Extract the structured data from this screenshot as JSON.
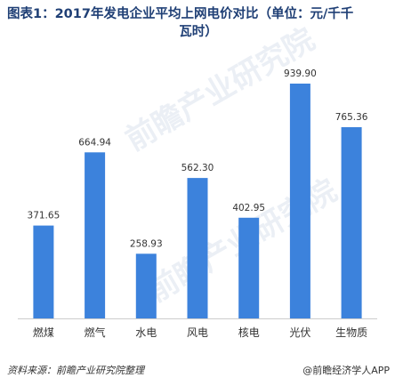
{
  "colors": {
    "bar": "#3c82dc",
    "title": "#1f3f75",
    "axis": "#cccccc",
    "text": "#333333",
    "watermark": "#dbe3ee"
  },
  "watermark_text": "前瞻产业研究院",
  "chart_data": {
    "type": "bar",
    "title": "图表1：2017年发电企业平均上网电价对比（单位：元/千千瓦时）",
    "title_line1": "图表1：2017年发电企业平均上网电价对比（单位：元/千千",
    "title_line2": "瓦时）",
    "categories": [
      "燃煤",
      "燃气",
      "水电",
      "风电",
      "核电",
      "光伏",
      "生物质"
    ],
    "values": [
      371.65,
      664.94,
      258.93,
      562.3,
      402.95,
      939.9,
      765.36
    ],
    "value_labels": [
      "371.65",
      "664.94",
      "258.93",
      "562.30",
      "402.95",
      "939.90",
      "765.36"
    ],
    "xlabel": "",
    "ylabel": "",
    "ylim": [
      0,
      1000
    ],
    "grid": false,
    "legend": "none"
  },
  "footer": {
    "source": "资料来源：前瞻产业研究院整理",
    "credit": "@前瞻经济学人APP"
  }
}
